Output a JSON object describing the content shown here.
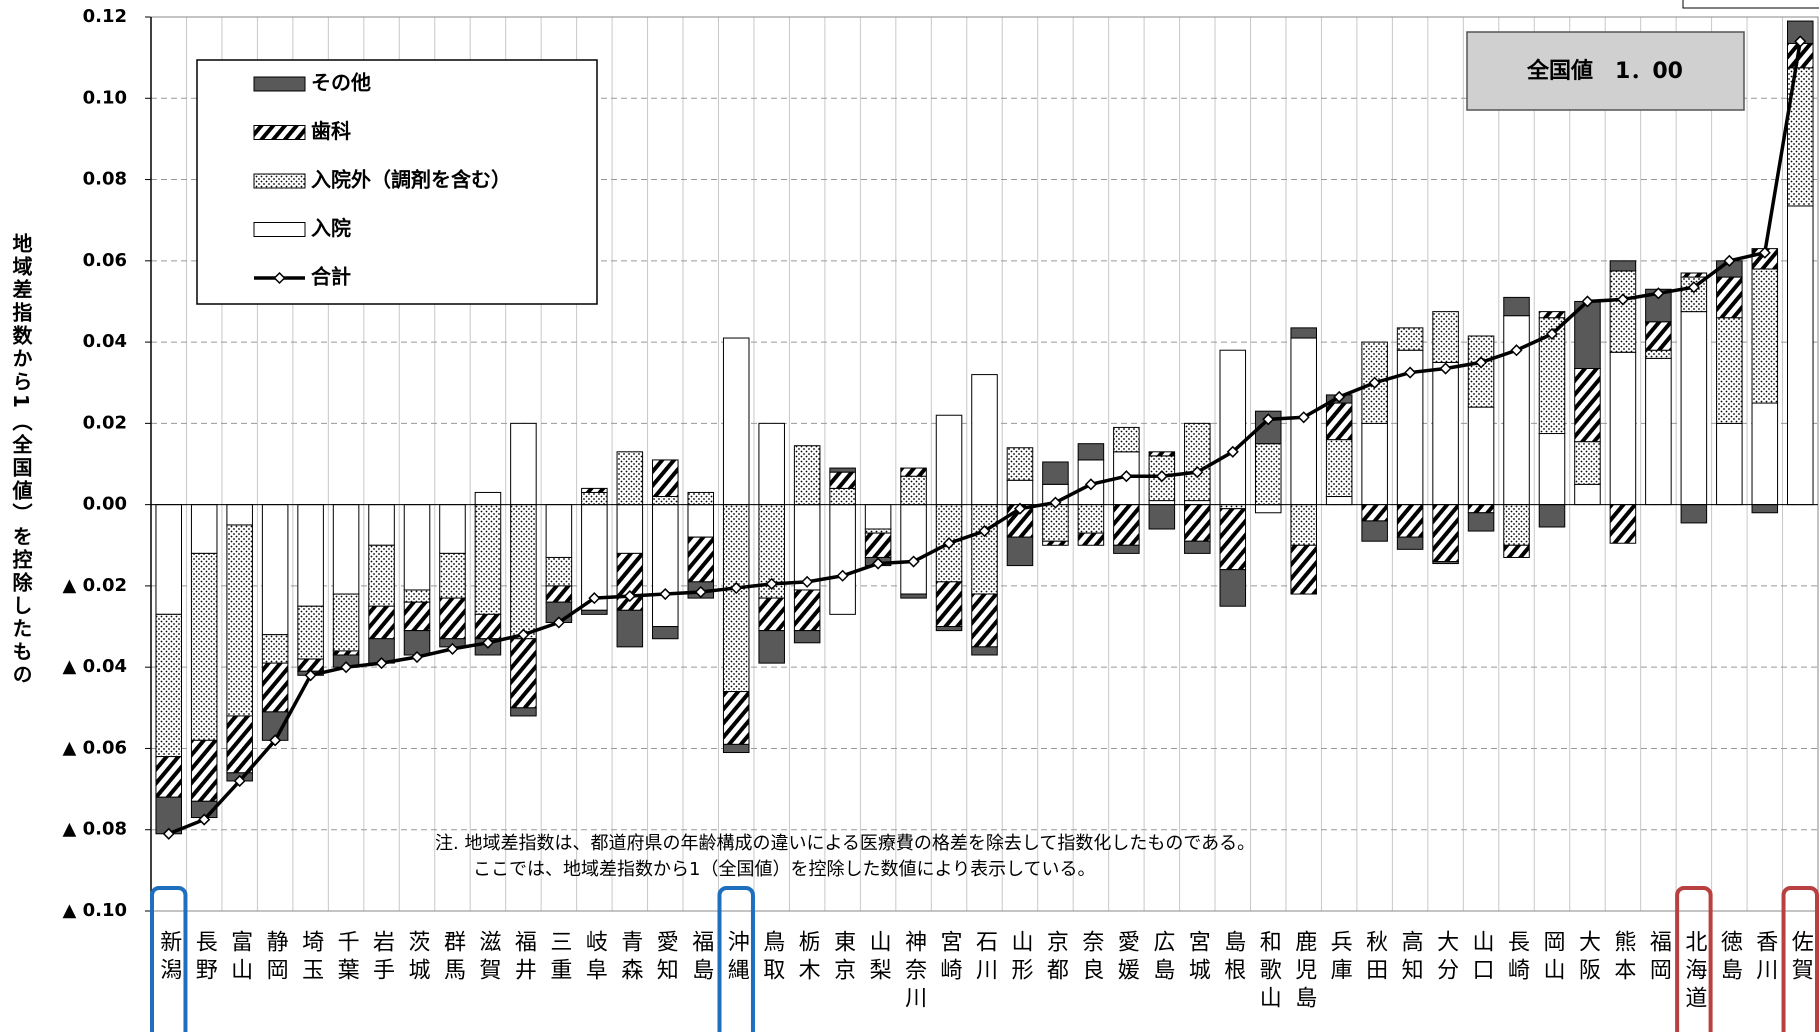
{
  "chart_data": {
    "type": "stacked_bar",
    "y_label": "地域差指数から1（全国値）を控除したもの",
    "national_label": "全国値　1．00",
    "note": [
      "注. 地域差指数は、都道府県の年齢構成の違いによる医療費の格差を除去して指数化したものである。",
      "ここでは、地域差指数から1（全国値）を控除した数値により表示している。"
    ],
    "categories": [
      "新潟",
      "長野",
      "富山",
      "静岡",
      "埼玉",
      "千葉",
      "岩手",
      "茨城",
      "群馬",
      "滋賀",
      "福井",
      "三重",
      "岐阜",
      "青森",
      "愛知",
      "福島",
      "沖縄",
      "鳥取",
      "栃木",
      "東京",
      "山梨",
      "神奈川",
      "宮崎",
      "石川",
      "山形",
      "京都",
      "奈良",
      "愛媛",
      "広島",
      "宮城",
      "島根",
      "和歌山",
      "鹿児島",
      "兵庫",
      "秋田",
      "高知",
      "大分",
      "山口",
      "長崎",
      "岡山",
      "大阪",
      "熊本",
      "福岡",
      "北海道",
      "徳島",
      "香川",
      "佐賀"
    ],
    "series": [
      {
        "name": "その他",
        "color": "#595959",
        "values": [
          -0.009,
          -0.004,
          -0.002,
          -0.007,
          -0.001,
          -0.003,
          -0.006,
          -0.006,
          -0.002,
          -0.004,
          -0.002,
          -0.005,
          -0.001,
          -0.009,
          -0.003,
          -0.004,
          -0.002,
          -0.008,
          -0.003,
          0.001,
          -0.002,
          -0.001,
          -0.001,
          -0.002,
          -0.007,
          0.0055,
          0.004,
          -0.002,
          -0.006,
          -0.003,
          -0.009,
          0.008,
          0.0025,
          0.002,
          -0.005,
          -0.003,
          -0.0005,
          -0.0045,
          0.0045,
          -0.0055,
          0.0165,
          0.0025,
          0.008,
          -0.0045,
          0.004,
          -0.002,
          0.0055
        ]
      },
      {
        "name": "歯科",
        "color": "#000000",
        "pattern": "hatch",
        "values": [
          -0.01,
          -0.015,
          -0.014,
          -0.012,
          -0.003,
          -0.001,
          -0.008,
          -0.007,
          -0.01,
          -0.006,
          -0.017,
          -0.004,
          0.001,
          -0.014,
          0.009,
          -0.011,
          -0.013,
          -0.008,
          -0.01,
          0.004,
          -0.006,
          0.002,
          -0.011,
          -0.013,
          -0.008,
          -0.001,
          -0.003,
          -0.01,
          0.001,
          -0.009,
          -0.015,
          0,
          -0.012,
          0.009,
          -0.004,
          -0.008,
          -0.014,
          -0.002,
          -0.003,
          0.0015,
          0.018,
          -0.0095,
          0.007,
          0.001,
          0.01,
          0.005,
          0.006
        ]
      },
      {
        "name": "入院外（調剤を含む）",
        "color": "#000000",
        "pattern": "dots",
        "values": [
          -0.035,
          -0.046,
          -0.047,
          -0.007,
          -0.013,
          -0.014,
          -0.015,
          -0.003,
          -0.011,
          -0.027,
          -0.033,
          -0.007,
          0.003,
          0.013,
          0.002,
          0.003,
          -0.046,
          -0.023,
          0.0145,
          0.004,
          -0.001,
          0.007,
          -0.019,
          -0.022,
          0.008,
          -0.009,
          -0.007,
          0.006,
          0.011,
          0.019,
          -0.001,
          0.015,
          -0.01,
          0.014,
          0.02,
          0.0055,
          0.0125,
          0.0175,
          -0.01,
          0.0285,
          0.0105,
          0.02,
          0.002,
          0.0085,
          0.026,
          0.033,
          0.034
        ]
      },
      {
        "name": "入院",
        "color": "#ffffff",
        "values": [
          -0.027,
          -0.012,
          -0.005,
          -0.032,
          -0.025,
          -0.022,
          -0.01,
          -0.021,
          -0.012,
          0.003,
          0.02,
          -0.013,
          -0.026,
          -0.012,
          -0.03,
          -0.008,
          0.041,
          0.02,
          -0.021,
          -0.027,
          -0.006,
          -0.022,
          0.022,
          0.032,
          0.006,
          0.005,
          0.011,
          0.013,
          0.001,
          0.001,
          0.038,
          -0.002,
          0.041,
          0.002,
          0.02,
          0.038,
          0.035,
          0.024,
          0.0465,
          0.0175,
          0.005,
          0.0375,
          0.036,
          0.0475,
          0.02,
          0.025,
          0.0735
        ]
      },
      {
        "name": "合計",
        "type": "line",
        "color": "#000000",
        "values": [
          -0.081,
          -0.0775,
          -0.068,
          -0.058,
          -0.042,
          -0.04,
          -0.039,
          -0.0375,
          -0.0355,
          -0.034,
          -0.032,
          -0.029,
          -0.023,
          -0.0225,
          -0.022,
          -0.0215,
          -0.0205,
          -0.0195,
          -0.019,
          -0.0175,
          -0.0145,
          -0.014,
          -0.0095,
          -0.0065,
          -0.001,
          0.0005,
          0.005,
          0.007,
          0.007,
          0.008,
          0.013,
          0.021,
          0.0215,
          0.0265,
          0.03,
          0.0325,
          0.0335,
          0.035,
          0.038,
          0.042,
          0.05,
          0.0505,
          0.052,
          0.0535,
          0.06,
          0.062,
          0.114
        ]
      }
    ],
    "ylim": [
      -0.1,
      0.12
    ],
    "yticks": [
      0.12,
      {
        "value": 0.1,
        "label": "0.10"
      },
      0.08,
      0.06,
      0.04,
      0.02,
      {
        "value": 0,
        "label": "0.00"
      },
      {
        "value": -0.02,
        "label": "▲ 0.02"
      },
      {
        "value": -0.04,
        "label": "▲ 0.04"
      },
      {
        "value": -0.06,
        "label": "▲ 0.06"
      },
      {
        "value": -0.08,
        "label": "▲ 0.08"
      },
      {
        "value": -0.1,
        "label": "▲ 0.10"
      }
    ],
    "grid": true
  }
}
